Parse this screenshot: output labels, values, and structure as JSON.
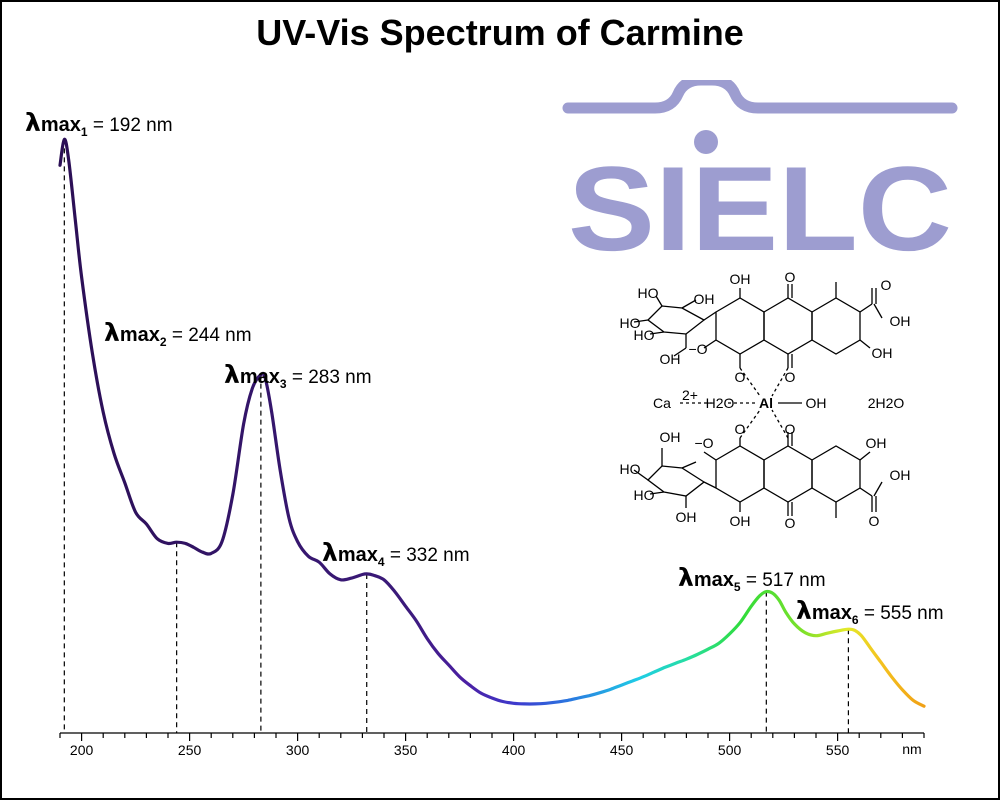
{
  "logo": {
    "text": "SIELC",
    "color": "#9d9dd0"
  },
  "molecule": {
    "atoms": {
      "oh": "OH",
      "ho": "HO",
      "o": "O",
      "ominus": "−O",
      "oneg": "O−",
      "al": "Al",
      "ca": "Ca",
      "ca_charge": "2+",
      "h2o_left": "H2O",
      "h2o_right": "2H2O"
    }
  },
  "chart_data": {
    "type": "line",
    "title": "UV-Vis Spectrum of Carmine",
    "xlabel": "",
    "ylabel": "",
    "x_unit": "nm",
    "xlim": [
      190,
      590
    ],
    "ylim": [
      0,
      1.0
    ],
    "x_ticks": [
      200,
      250,
      300,
      350,
      400,
      450,
      500,
      550
    ],
    "grid": false,
    "colored_by_wavelength": true,
    "peaks": [
      {
        "symbol": "λ",
        "label": "max",
        "index": "1",
        "text": "= 192 nm",
        "x": 192,
        "y": 0.984
      },
      {
        "symbol": "λ",
        "label": "max",
        "index": "2",
        "text": "= 244 nm",
        "x": 244,
        "y": 0.299
      },
      {
        "symbol": "λ",
        "label": "max",
        "index": "3",
        "text": "= 283 nm",
        "x": 283,
        "y": 0.584
      },
      {
        "symbol": "λ",
        "label": "max",
        "index": "4",
        "text": "= 332 nm",
        "x": 332,
        "y": 0.245
      },
      {
        "symbol": "λ",
        "label": "max",
        "index": "5",
        "text": "= 517 nm",
        "x": 517,
        "y": 0.215
      },
      {
        "symbol": "λ",
        "label": "max",
        "index": "6",
        "text": "= 555 nm",
        "x": 555,
        "y": 0.151
      }
    ],
    "series": [
      {
        "x": [
          190,
          192,
          194,
          197,
          200,
          205,
          210,
          215,
          220,
          225,
          230,
          235,
          240,
          244,
          248,
          252,
          256,
          260,
          265,
          270,
          275,
          279,
          283,
          285,
          288,
          292,
          296,
          300,
          305,
          310,
          315,
          320,
          325,
          330,
          332,
          335,
          340,
          345,
          350,
          355,
          360,
          365,
          370,
          375,
          380,
          385,
          390,
          395,
          400,
          405,
          410,
          415,
          420,
          425,
          430,
          435,
          440,
          445,
          450,
          455,
          460,
          465,
          470,
          475,
          480,
          485,
          490,
          495,
          500,
          505,
          510,
          514,
          517,
          520,
          523,
          526,
          530,
          535,
          540,
          545,
          550,
          555,
          558,
          561,
          565,
          570,
          575,
          580,
          585,
          590
        ],
        "y": [
          0.94,
          0.984,
          0.95,
          0.85,
          0.75,
          0.62,
          0.52,
          0.45,
          0.4,
          0.35,
          0.33,
          0.305,
          0.297,
          0.299,
          0.297,
          0.29,
          0.282,
          0.28,
          0.3,
          0.38,
          0.5,
          0.56,
          0.584,
          0.578,
          0.52,
          0.42,
          0.34,
          0.3,
          0.275,
          0.265,
          0.245,
          0.235,
          0.238,
          0.244,
          0.245,
          0.243,
          0.235,
          0.215,
          0.19,
          0.165,
          0.135,
          0.11,
          0.09,
          0.07,
          0.055,
          0.042,
          0.034,
          0.028,
          0.025,
          0.024,
          0.024,
          0.025,
          0.027,
          0.03,
          0.034,
          0.038,
          0.043,
          0.049,
          0.056,
          0.063,
          0.07,
          0.078,
          0.086,
          0.093,
          0.1,
          0.108,
          0.117,
          0.127,
          0.143,
          0.163,
          0.19,
          0.208,
          0.215,
          0.212,
          0.2,
          0.18,
          0.16,
          0.145,
          0.14,
          0.144,
          0.148,
          0.151,
          0.149,
          0.14,
          0.12,
          0.095,
          0.07,
          0.048,
          0.03,
          0.02
        ]
      }
    ]
  }
}
